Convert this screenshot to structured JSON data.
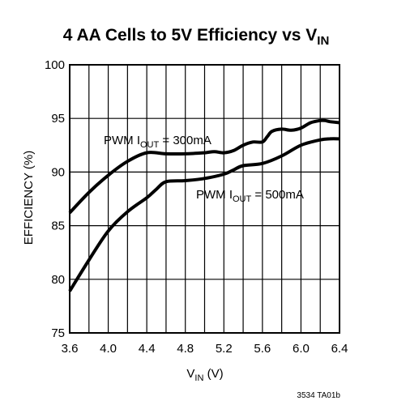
{
  "chart_data": {
    "type": "line",
    "title": {
      "main": "4 AA Cells to 5V Efficiency vs V",
      "sub": "IN"
    },
    "xlabel": {
      "main": "V",
      "sub": "IN",
      "unit": " (V)"
    },
    "ylabel": "EFFICIENCY (%)",
    "xlim": [
      3.6,
      6.4
    ],
    "ylim": [
      75,
      100
    ],
    "xticks": [
      "3.6",
      "4.0",
      "4.4",
      "4.8",
      "5.2",
      "5.6",
      "6.0",
      "6.4"
    ],
    "yticks": [
      "75",
      "80",
      "85",
      "90",
      "95",
      "100"
    ],
    "grid": true,
    "series": [
      {
        "name": {
          "pre": "PWM I",
          "sub": "OUT",
          "post": " = 300mA"
        },
        "x": [
          3.6,
          3.8,
          4.0,
          4.2,
          4.4,
          4.6,
          4.8,
          5.0,
          5.1,
          5.2,
          5.3,
          5.4,
          5.5,
          5.6,
          5.65,
          5.7,
          5.8,
          5.9,
          6.0,
          6.1,
          6.2,
          6.25,
          6.3,
          6.4
        ],
        "y": [
          86.2,
          88.1,
          89.7,
          91.0,
          91.8,
          91.7,
          91.7,
          91.8,
          91.9,
          91.8,
          92.0,
          92.5,
          92.8,
          92.8,
          93.3,
          93.8,
          94.0,
          93.9,
          94.1,
          94.6,
          94.8,
          94.8,
          94.7,
          94.6
        ]
      },
      {
        "name": {
          "pre": "PWM I",
          "sub": "OUT",
          "post": " = 500mA"
        },
        "x": [
          3.6,
          3.8,
          4.0,
          4.2,
          4.4,
          4.5,
          4.6,
          4.8,
          5.0,
          5.2,
          5.3,
          5.4,
          5.6,
          5.8,
          6.0,
          6.2,
          6.3,
          6.4
        ],
        "y": [
          78.9,
          81.8,
          84.5,
          86.3,
          87.6,
          88.4,
          89.1,
          89.2,
          89.4,
          89.8,
          90.2,
          90.6,
          90.8,
          91.5,
          92.5,
          93.0,
          93.1,
          93.1
        ]
      }
    ]
  },
  "footnote": "3534 TA01b"
}
